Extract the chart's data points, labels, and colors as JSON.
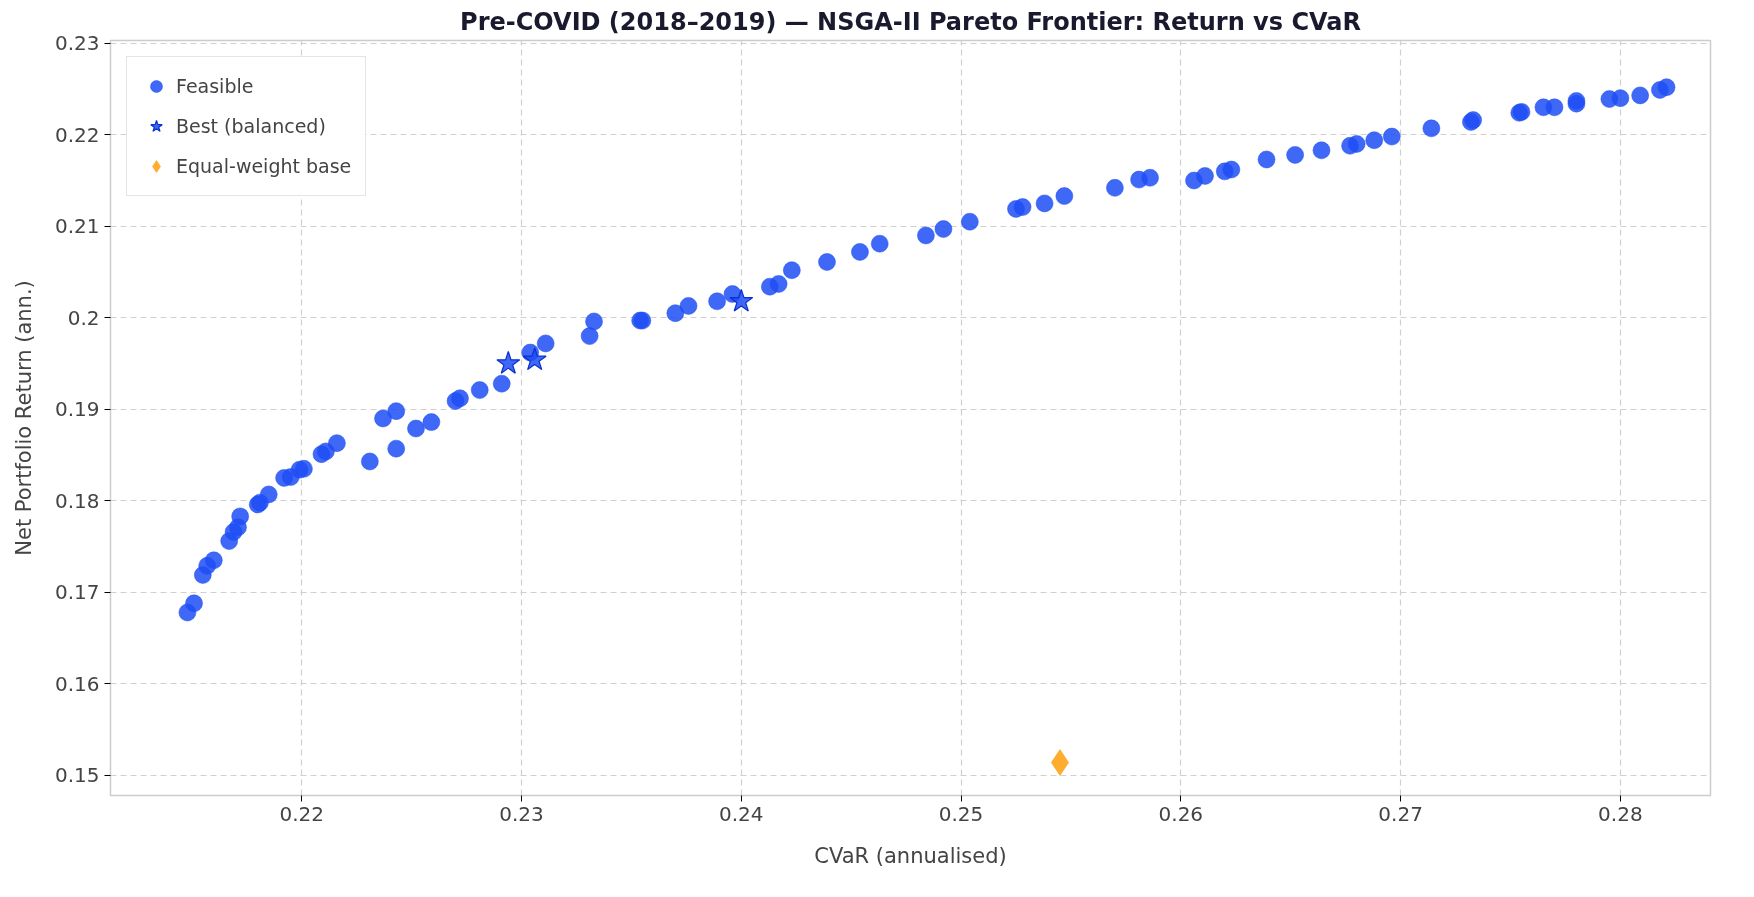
{
  "chart_data": {
    "type": "scatter",
    "title": "Pre-COVID (2018–2019) — NSGA-II Pareto Frontier: Return vs CVaR",
    "xlabel": "CVaR (annualised)",
    "ylabel": "Net Portfolio Return (ann.)",
    "xlim": [
      0.2113,
      0.2841
    ],
    "ylim": [
      0.1478,
      0.2303
    ],
    "xticks": [
      0.22,
      0.23,
      0.24,
      0.25,
      0.26,
      0.27,
      0.28
    ],
    "yticks": [
      0.15,
      0.16,
      0.17,
      0.18,
      0.19,
      0.2,
      0.21,
      0.22,
      0.23
    ],
    "grid": true,
    "legend": "top left",
    "series": [
      {
        "name": "Feasible",
        "color": "#1f4ef5",
        "marker": "circle",
        "x": [
          0.2148,
          0.2151,
          0.2155,
          0.2157,
          0.216,
          0.2167,
          0.2169,
          0.2172,
          0.2171,
          0.218,
          0.2181,
          0.2185,
          0.2192,
          0.2195,
          0.2199,
          0.2201,
          0.2209,
          0.2211,
          0.2216,
          0.2231,
          0.2237,
          0.2243,
          0.2243,
          0.2252,
          0.2259,
          0.227,
          0.2272,
          0.2281,
          0.2291,
          0.2304,
          0.2311,
          0.2331,
          0.2333,
          0.2354,
          0.2355,
          0.237,
          0.2376,
          0.2389,
          0.2396,
          0.2413,
          0.2417,
          0.2423,
          0.2439,
          0.2454,
          0.2463,
          0.2484,
          0.2492,
          0.2504,
          0.2525,
          0.2528,
          0.2538,
          0.2547,
          0.257,
          0.2581,
          0.2586,
          0.2606,
          0.2611,
          0.262,
          0.2623,
          0.2639,
          0.2652,
          0.2664,
          0.2677,
          0.268,
          0.2688,
          0.2696,
          0.2714,
          0.2732,
          0.2733,
          0.2754,
          0.2755,
          0.2765,
          0.277,
          0.278,
          0.278,
          0.2795,
          0.28,
          0.2809,
          0.2818,
          0.2821
        ],
        "values": [
          0.1678,
          0.1688,
          0.1719,
          0.1729,
          0.1735,
          0.1756,
          0.1766,
          0.1783,
          0.1771,
          0.1796,
          0.1798,
          0.1807,
          0.1825,
          0.1826,
          0.1834,
          0.1835,
          0.1851,
          0.1854,
          0.1863,
          0.1843,
          0.189,
          0.1898,
          0.1857,
          0.1879,
          0.1886,
          0.1909,
          0.1912,
          0.1921,
          0.1928,
          0.1962,
          0.1972,
          0.198,
          0.1996,
          0.1997,
          0.1997,
          0.2005,
          0.2013,
          0.2018,
          0.2026,
          0.2034,
          0.2037,
          0.2052,
          0.2061,
          0.2072,
          0.2081,
          0.209,
          0.2097,
          0.2105,
          0.2119,
          0.2121,
          0.2125,
          0.2133,
          0.2142,
          0.2151,
          0.2153,
          0.215,
          0.2155,
          0.216,
          0.2162,
          0.2173,
          0.2178,
          0.2183,
          0.2188,
          0.219,
          0.2194,
          0.2198,
          0.2207,
          0.2214,
          0.2216,
          0.2224,
          0.2225,
          0.223,
          0.223,
          0.2234,
          0.2237,
          0.2239,
          0.224,
          0.2243,
          0.2249,
          0.2252
        ]
      },
      {
        "name": "Best (balanced)",
        "color": "#1f4ef5",
        "marker": "star",
        "x": [
          0.2294,
          0.2306,
          0.24
        ],
        "values": [
          0.195,
          0.1954,
          0.2018
        ]
      },
      {
        "name": "Equal-weight base",
        "color": "#ff9f0a",
        "marker": "diamond",
        "x": [
          0.2545
        ],
        "values": [
          0.1514
        ]
      }
    ]
  }
}
